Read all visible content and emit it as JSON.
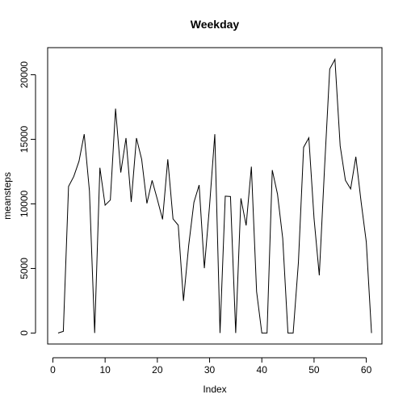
{
  "chart_data": {
    "type": "line",
    "title": "Weekday",
    "xlabel": "Index",
    "ylabel": "meansteps",
    "xlim": [
      -1,
      63
    ],
    "ylim": [
      -850,
      22100
    ],
    "xticks": [
      0,
      10,
      20,
      30,
      40,
      50,
      60
    ],
    "yticks": [
      0,
      5000,
      10000,
      15000,
      20000
    ],
    "grid": false,
    "legend": "none",
    "line_color": "#000000",
    "series": [
      {
        "x": [
          1,
          2,
          3,
          4,
          5,
          6,
          7,
          8,
          9,
          10,
          11,
          12,
          13,
          14,
          15,
          16,
          17,
          18,
          19,
          20,
          21,
          22,
          23,
          24,
          25,
          26,
          27,
          28,
          29,
          30,
          31,
          32,
          33,
          34,
          35,
          36,
          37,
          38,
          39,
          40,
          41,
          42,
          43,
          44,
          45,
          46,
          47,
          48,
          49,
          50,
          51,
          52,
          53,
          54,
          55,
          56,
          57,
          58,
          59,
          60,
          61
        ],
        "values": [
          0,
          130,
          11350,
          12120,
          13300,
          15400,
          11000,
          0,
          12800,
          9900,
          10300,
          17380,
          12430,
          15100,
          10150,
          15100,
          13450,
          10040,
          11820,
          10350,
          8800,
          13450,
          8840,
          8350,
          2490,
          6780,
          10120,
          11460,
          5020,
          9880,
          15400,
          0,
          10600,
          10570,
          0,
          10430,
          8330,
          12880,
          3210,
          0,
          0,
          12620,
          10760,
          7340,
          0,
          0,
          5440,
          14380,
          15120,
          8860,
          4470,
          12720,
          20440,
          21190,
          14490,
          11830,
          11160,
          13650,
          10180,
          7050,
          0
        ]
      }
    ]
  }
}
